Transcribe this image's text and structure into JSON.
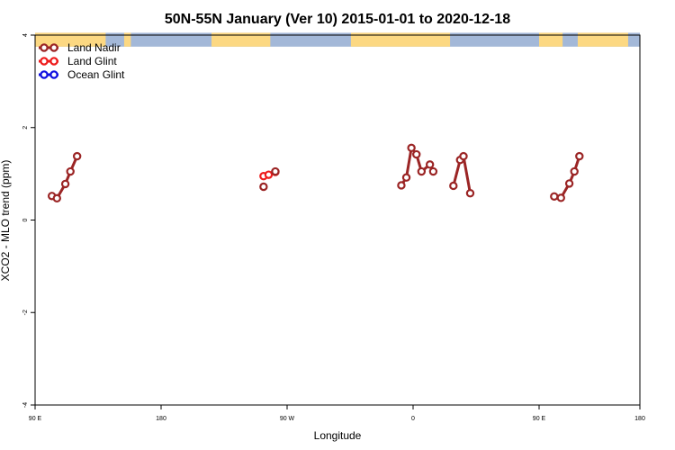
{
  "chart_data": {
    "type": "line",
    "title": "50N-55N January (Ver 10)   2015-01-01 to 2020-12-18",
    "xlabel": "Longitude",
    "ylabel": "XCO2 - MLO trend (ppm)",
    "xlim": [
      -90,
      270
    ],
    "ylim": [
      -4,
      4
    ],
    "x_ticks": [
      {
        "value": -90,
        "label": "90 E"
      },
      {
        "value": -15,
        "label": "180"
      },
      {
        "value": 60,
        "label": "90 W"
      },
      {
        "value": 135,
        "label": "0"
      },
      {
        "value": 210,
        "label": "90 E"
      },
      {
        "value": 270,
        "label": "180"
      }
    ],
    "y_ticks": [
      {
        "value": -4,
        "label": "-4"
      },
      {
        "value": -2,
        "label": "-2"
      },
      {
        "value": 0,
        "label": "0"
      },
      {
        "value": 2,
        "label": "2"
      },
      {
        "value": 4,
        "label": "4"
      }
    ],
    "legend_position": "top-left",
    "land_band": {
      "y_range": [
        3.75,
        4.05
      ],
      "ocean_color": "#a3b8d8",
      "land_color": "#fcd882",
      "land_segments": [
        [
          -90,
          -48
        ],
        [
          -37,
          -33
        ],
        [
          15,
          50
        ],
        [
          98,
          157
        ],
        [
          210,
          224
        ],
        [
          233,
          263
        ]
      ]
    },
    "series": [
      {
        "name": "Land Nadir",
        "color": "#9b2525",
        "segments": [
          [
            [
              -80,
              0.52
            ],
            [
              -77,
              0.47
            ],
            [
              -72,
              0.78
            ],
            [
              -69,
              1.05
            ],
            [
              -65,
              1.38
            ]
          ],
          [
            [
              128,
              0.75
            ],
            [
              131,
              0.92
            ],
            [
              134,
              1.56
            ],
            [
              137,
              1.42
            ],
            [
              140,
              1.05
            ],
            [
              145,
              1.2
            ],
            [
              147,
              1.05
            ]
          ],
          [
            [
              159,
              0.74
            ],
            [
              163,
              1.3
            ],
            [
              165,
              1.38
            ],
            [
              169,
              0.58
            ]
          ],
          [
            [
              219,
              0.51
            ],
            [
              223,
              0.48
            ],
            [
              228,
              0.79
            ],
            [
              231,
              1.05
            ],
            [
              234,
              1.38
            ]
          ]
        ]
      },
      {
        "name": "Land Glint",
        "color": "#ee1c1c",
        "segments": [
          [
            [
              46,
              0.95
            ],
            [
              49,
              0.98
            ],
            [
              53,
              1.04
            ]
          ]
        ],
        "extra_points_other_color": {
          "color": "#9b2525",
          "points": [
            [
              46,
              0.72
            ],
            [
              53,
              1.05
            ]
          ]
        }
      },
      {
        "name": "Ocean Glint",
        "color": "#1010e0",
        "segments": []
      }
    ]
  }
}
